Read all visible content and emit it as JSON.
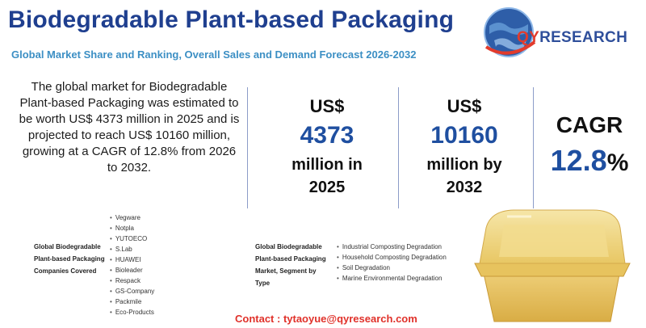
{
  "header": {
    "title": "Biodegradable Plant-based Packaging",
    "subtitle": "Global Market Share and Ranking, Overall Sales and Demand Forecast 2026-2032"
  },
  "logo": {
    "text_q": "QY",
    "text_rest": "RESEARCH"
  },
  "summary": "The global market for Biodegradable Plant-based Packaging was estimated to be worth US$ 4373 million in 2025 and is projected to reach US$ 10160 million, growing at a CAGR of 12.8% from 2026 to 2032.",
  "stats": {
    "market_2025": {
      "label": "US$",
      "value": "4373",
      "sub1": "million in",
      "sub2": "2025"
    },
    "market_2032": {
      "label": "US$",
      "value": "10160",
      "sub1": "million by",
      "sub2": "2032"
    },
    "cagr": {
      "label": "CAGR",
      "value": "12.8",
      "unit": "%"
    }
  },
  "companies": {
    "label_lines": [
      "Global Biodegradable",
      "Plant-based Packaging",
      "Companies Covered"
    ],
    "items": [
      "Vegware",
      "Notpla",
      "YUTOECO",
      "S.Lab",
      "HUAWEI",
      "Bioleader",
      "Respack",
      "GS-Company",
      "Packmile",
      "Eco-Products"
    ]
  },
  "segments": {
    "label_lines": [
      "Global Biodegradable",
      "Plant-based Packaging",
      "Market, Segment by",
      "Type"
    ],
    "items": [
      "Industrial Composting Degradation",
      "Household Composting Degradation",
      "Soil Degradation",
      "Marine Environmental Degradation"
    ]
  },
  "contact": "Contact : tytaoyue@qyresearch.com",
  "colors": {
    "title": "#1f3f8f",
    "subtitle": "#3c8fc4",
    "accent": "#1f4fa0",
    "contact": "#e0312a"
  }
}
